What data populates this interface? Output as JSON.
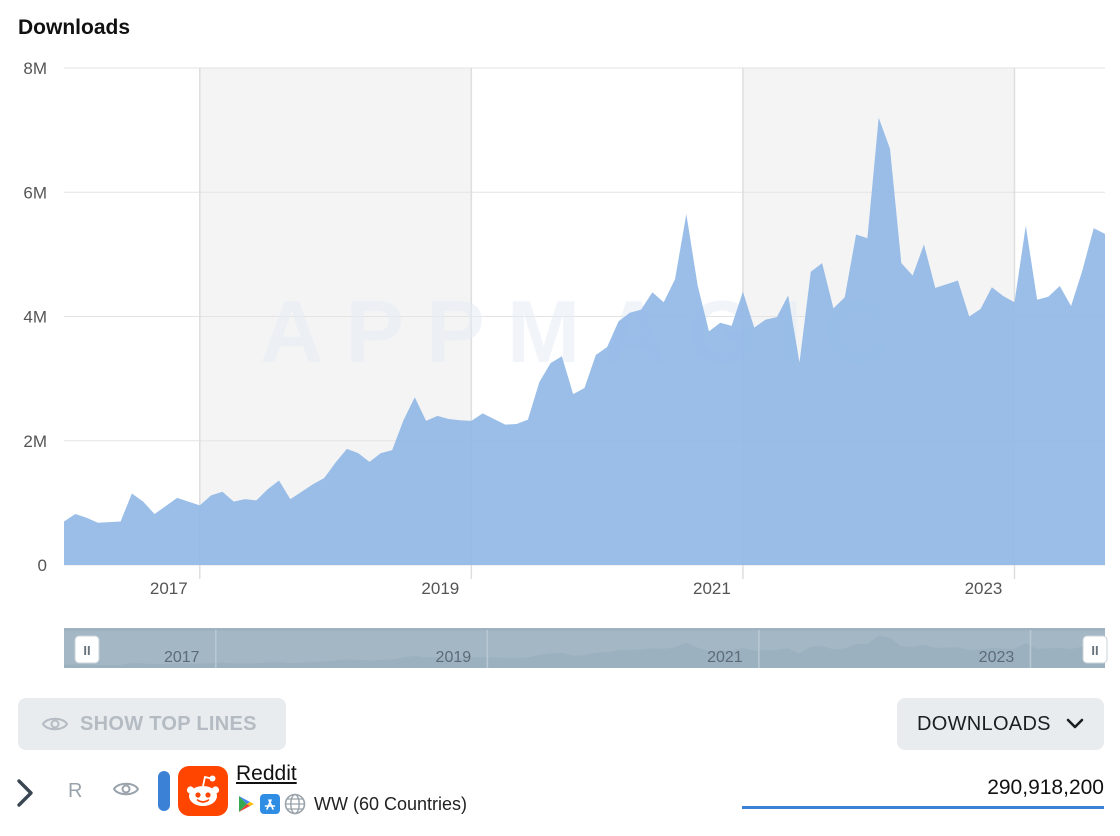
{
  "chart_title": "Downloads",
  "watermark": "APPMAGIC",
  "chart_data": {
    "type": "area",
    "title": "Downloads",
    "xlabel": "",
    "ylabel": "",
    "ylim": [
      0,
      8000000
    ],
    "xlim": [
      "2016-01",
      "2023-09"
    ],
    "y_ticks": [
      {
        "value": 0,
        "label": "0"
      },
      {
        "value": 2000000,
        "label": "2M"
      },
      {
        "value": 4000000,
        "label": "4M"
      },
      {
        "value": 6000000,
        "label": "6M"
      },
      {
        "value": 8000000,
        "label": "8M"
      }
    ],
    "x_ticks": [
      {
        "value": "2017-01",
        "label": "2017"
      },
      {
        "value": "2019-01",
        "label": "2019"
      },
      {
        "value": "2021-01",
        "label": "2021"
      },
      {
        "value": "2023-01",
        "label": "2023"
      }
    ],
    "shaded_years": [
      [
        "2017-01",
        "2019-01"
      ],
      [
        "2021-01",
        "2023-01"
      ]
    ],
    "grid": true,
    "series": [
      {
        "name": "Reddit",
        "color": "#8fb7e6",
        "x": [
          "2016-01",
          "2016-02",
          "2016-03",
          "2016-04",
          "2016-05",
          "2016-06",
          "2016-07",
          "2016-08",
          "2016-09",
          "2016-10",
          "2016-11",
          "2016-12",
          "2017-01",
          "2017-02",
          "2017-03",
          "2017-04",
          "2017-05",
          "2017-06",
          "2017-07",
          "2017-08",
          "2017-09",
          "2017-10",
          "2017-11",
          "2017-12",
          "2018-01",
          "2018-02",
          "2018-03",
          "2018-04",
          "2018-05",
          "2018-06",
          "2018-07",
          "2018-08",
          "2018-09",
          "2018-10",
          "2018-11",
          "2018-12",
          "2019-01",
          "2019-02",
          "2019-03",
          "2019-04",
          "2019-05",
          "2019-06",
          "2019-07",
          "2019-08",
          "2019-09",
          "2019-10",
          "2019-11",
          "2019-12",
          "2020-01",
          "2020-02",
          "2020-03",
          "2020-04",
          "2020-05",
          "2020-06",
          "2020-07",
          "2020-08",
          "2020-09",
          "2020-10",
          "2020-11",
          "2020-12",
          "2021-01",
          "2021-02",
          "2021-03",
          "2021-04",
          "2021-05",
          "2021-06",
          "2021-07",
          "2021-08",
          "2021-09",
          "2021-10",
          "2021-11",
          "2021-12",
          "2022-01",
          "2022-02",
          "2022-03",
          "2022-04",
          "2022-05",
          "2022-06",
          "2022-07",
          "2022-08",
          "2022-09",
          "2022-10",
          "2022-11",
          "2022-12",
          "2023-01",
          "2023-02",
          "2023-03",
          "2023-04",
          "2023-05",
          "2023-06",
          "2023-07",
          "2023-08",
          "2023-09"
        ],
        "values": [
          700000,
          820000,
          760000,
          680000,
          690000,
          700000,
          1150000,
          1020000,
          820000,
          950000,
          1080000,
          1020000,
          960000,
          1120000,
          1180000,
          1020000,
          1060000,
          1040000,
          1220000,
          1360000,
          1060000,
          1180000,
          1300000,
          1400000,
          1650000,
          1870000,
          1800000,
          1660000,
          1800000,
          1850000,
          2330000,
          2700000,
          2320000,
          2400000,
          2350000,
          2330000,
          2320000,
          2440000,
          2350000,
          2260000,
          2270000,
          2340000,
          2940000,
          3250000,
          3360000,
          2750000,
          2850000,
          3380000,
          3510000,
          3920000,
          4060000,
          4110000,
          4390000,
          4230000,
          4600000,
          5650000,
          4500000,
          3760000,
          3900000,
          3850000,
          4400000,
          3820000,
          3950000,
          3990000,
          4340000,
          3260000,
          4720000,
          4860000,
          4130000,
          4310000,
          5320000,
          5260000,
          7200000,
          6700000,
          4860000,
          4660000,
          5160000,
          4460000,
          4520000,
          4580000,
          4000000,
          4120000,
          4470000,
          4330000,
          4230000,
          5460000,
          4270000,
          4320000,
          4490000,
          4170000,
          4740000,
          5420000,
          5330000
        ]
      }
    ]
  },
  "navigator": {
    "labels": [
      "2017",
      "2019",
      "2021",
      "2023"
    ],
    "handle_glyph": "II"
  },
  "controls": {
    "show_top_lines_label": "SHOW TOP LINES",
    "metric_label": "DOWNLOADS"
  },
  "app_row": {
    "rank": "R",
    "name": "Reddit",
    "region": "WW (60 Countries)",
    "total": "290,918,200",
    "series_color": "#3b82d6",
    "brand_color": "#ff4500",
    "icons": [
      "chevron-right-icon",
      "eye-icon",
      "reddit-logo",
      "google-play-icon",
      "app-store-icon",
      "globe-icon"
    ]
  }
}
